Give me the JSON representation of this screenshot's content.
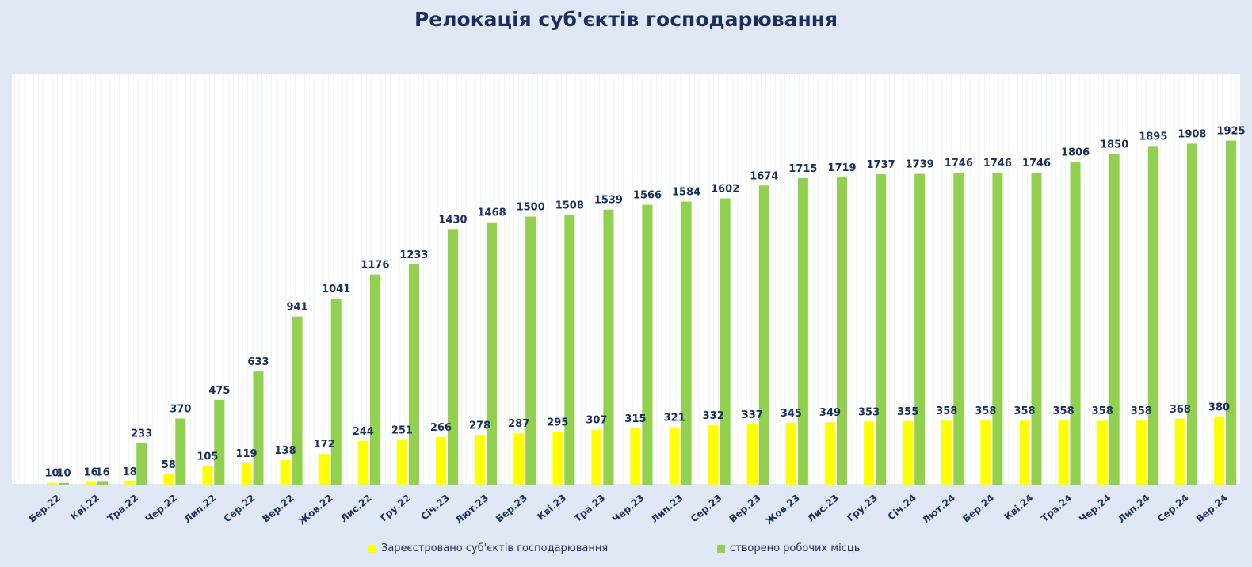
{
  "page": {
    "title": "Релокація суб'єктів господарювання"
  },
  "legend": {
    "series_0": "Зареєстровано суб'єктів господарювання",
    "series_1": "створено робочих місць"
  },
  "colors": {
    "series_0": "#ffff00",
    "series_1": "#92d050",
    "plot_bg": "#ffffff",
    "grid": "#e4ecef"
  },
  "chart_data": {
    "type": "bar",
    "title": "Релокація суб'єктів господарювання",
    "xlabel": "",
    "ylabel": "",
    "ylim": [
      0,
      2300
    ],
    "grid": false,
    "legend_position": "bottom",
    "categories": [
      "Бер.22",
      "Кві.22",
      "Тра.22",
      "Чер.22",
      "Лип.22",
      "Сер.22",
      "Вер.22",
      "Жов.22",
      "Лис.22",
      "Гру.22",
      "Січ.23",
      "Лют.23",
      "Бер.23",
      "Кві.23",
      "Тра.23",
      "Чер.23",
      "Лип.23",
      "Сер.23",
      "Вер.23",
      "Жов.23",
      "Лис.23",
      "Гру.23",
      "Січ.24",
      "Лют.24",
      "Бер.24",
      "Кві.24",
      "Тра.24",
      "Чер.24",
      "Лип.24",
      "Сер.24",
      "Вер.24"
    ],
    "series": [
      {
        "name": "Зареєстровано суб'єктів господарювання",
        "values": [
          10,
          16,
          18,
          58,
          105,
          119,
          138,
          172,
          244,
          251,
          266,
          278,
          287,
          295,
          307,
          315,
          321,
          332,
          337,
          345,
          349,
          353,
          355,
          358,
          358,
          358,
          358,
          358,
          358,
          368,
          380
        ]
      },
      {
        "name": "створено робочих місць",
        "values": [
          10,
          16,
          233,
          370,
          475,
          633,
          941,
          1041,
          1176,
          1233,
          1430,
          1468,
          1500,
          1508,
          1539,
          1566,
          1584,
          1602,
          1674,
          1715,
          1719,
          1737,
          1739,
          1746,
          1746,
          1746,
          1806,
          1850,
          1895,
          1908,
          1925
        ]
      }
    ]
  }
}
